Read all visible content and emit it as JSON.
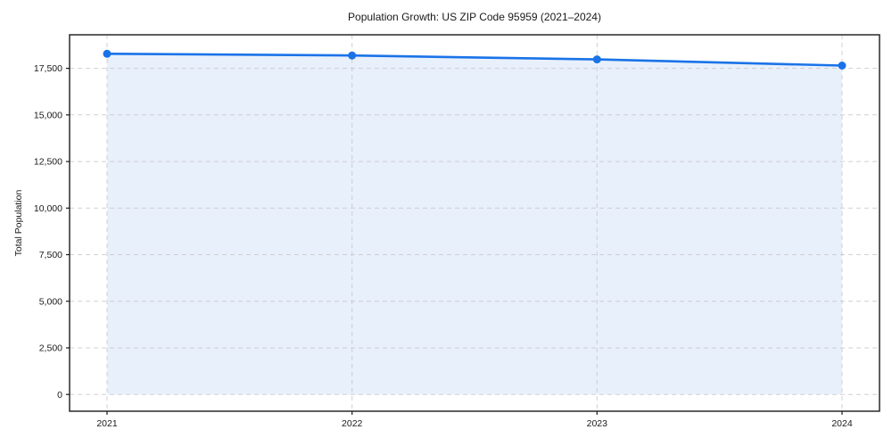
{
  "chart_data": {
    "type": "area",
    "title": "Population Growth: US ZIP Code 95959 (2021–2024)",
    "xlabel": "",
    "ylabel": "Total Population",
    "x": [
      2021,
      2022,
      2023,
      2024
    ],
    "categories": [
      "2021",
      "2022",
      "2023",
      "2024"
    ],
    "series": [
      {
        "name": "Total Population",
        "values": [
          18280,
          18190,
          17980,
          17650
        ]
      }
    ],
    "yticks": [
      0,
      2500,
      5000,
      7500,
      10000,
      12500,
      15000,
      17500
    ],
    "ytick_labels": [
      "0",
      "2,500",
      "5,000",
      "7,500",
      "10,000",
      "12,500",
      "15,000",
      "17,500"
    ],
    "xlim": [
      2020.847,
      2024.153
    ],
    "ylim": [
      -900,
      19300
    ],
    "fill_baseline": 0,
    "grid": true,
    "grid_style": "dashed",
    "legend": "none",
    "colors": {
      "line": "#1a73e8",
      "marker": "#1a73e8",
      "fill": "#e8f0fc",
      "grid": "#c9c9c9",
      "spine": "#1a1a1a",
      "text": "#1a1a1a",
      "background": "#ffffff"
    }
  }
}
